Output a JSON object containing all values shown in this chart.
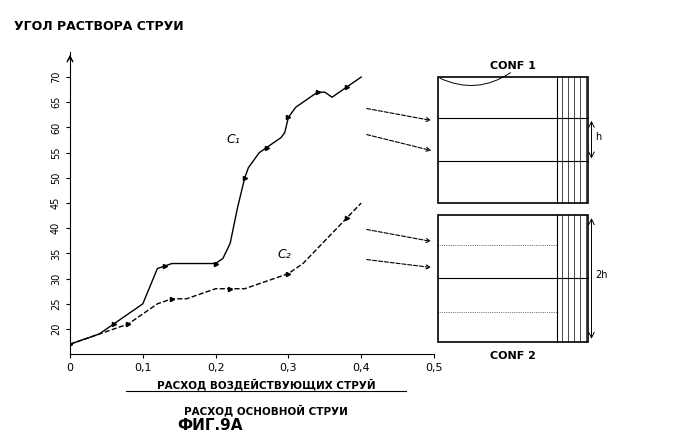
{
  "title": "УГОЛ РАСТВОРА СТРУИ",
  "xlabel1": "РАСХОД ВОЗДЕЙСТВУЮЩИХ СТРУЙ",
  "xlabel2": "РАСХОД ОСНОВНОЙ СТРУИ",
  "fig_label": "ФИГ.9А",
  "xlim": [
    0,
    0.5
  ],
  "ylim": [
    15,
    75
  ],
  "xticks": [
    0,
    0.1,
    0.2,
    0.3,
    0.4,
    0.5
  ],
  "yticks": [
    20,
    25,
    30,
    35,
    40,
    45,
    50,
    55,
    60,
    65,
    70
  ],
  "c1_x": [
    0.0,
    0.01,
    0.02,
    0.04,
    0.06,
    0.08,
    0.1,
    0.12,
    0.13,
    0.14,
    0.16,
    0.18,
    0.2,
    0.21,
    0.22,
    0.23,
    0.24,
    0.245,
    0.25,
    0.26,
    0.27,
    0.28,
    0.29,
    0.295,
    0.3,
    0.31,
    0.32,
    0.33,
    0.34,
    0.35,
    0.36,
    0.37,
    0.38,
    0.4
  ],
  "c1_y": [
    17,
    17.5,
    18,
    19,
    21,
    23,
    25,
    32,
    32.5,
    33,
    33,
    33,
    33,
    34,
    37,
    44,
    50,
    52,
    53,
    55,
    56,
    57,
    58,
    59,
    62,
    64,
    65,
    66,
    67,
    67,
    66,
    67,
    68,
    70
  ],
  "c2_x": [
    0.0,
    0.02,
    0.04,
    0.06,
    0.08,
    0.1,
    0.12,
    0.13,
    0.14,
    0.16,
    0.18,
    0.2,
    0.22,
    0.24,
    0.26,
    0.28,
    0.3,
    0.32,
    0.34,
    0.36,
    0.38,
    0.4
  ],
  "c2_y": [
    17,
    18,
    19,
    20,
    21,
    23,
    25,
    25.5,
    26,
    26,
    27,
    28,
    28,
    28,
    29,
    30,
    31,
    33,
    36,
    39,
    42,
    45
  ],
  "c1_label": "C₁",
  "c2_label": "C₂",
  "conf1_label": "CONF 1",
  "conf2_label": "CONF 2",
  "conf1_h_label": "h",
  "conf2_h_label": "2h",
  "bg_color": "#ffffff"
}
